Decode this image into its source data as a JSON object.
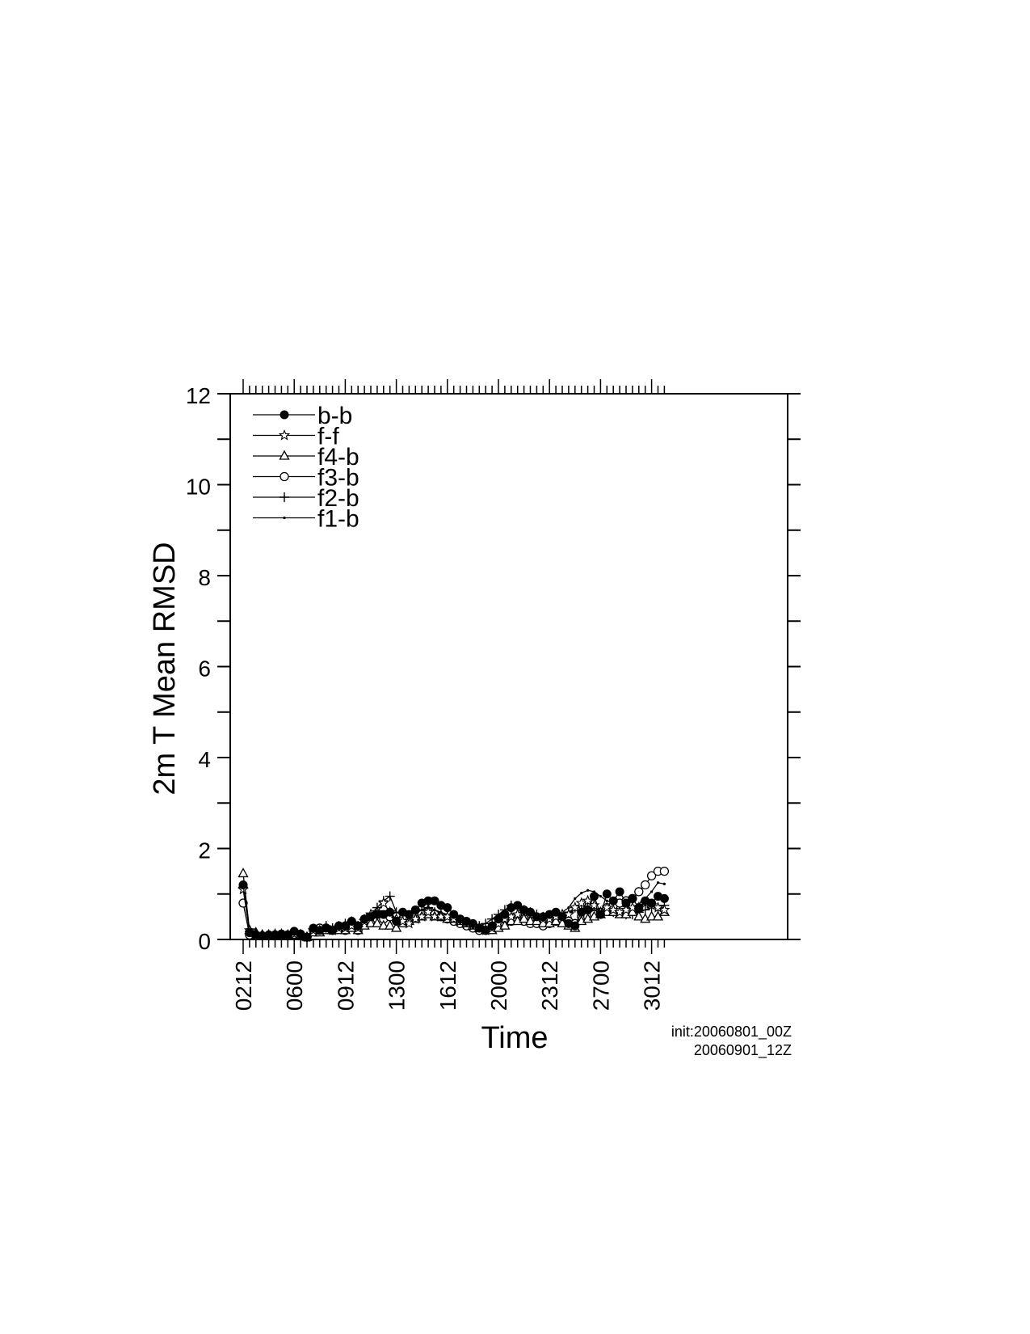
{
  "chart_data": {
    "type": "line",
    "title": "",
    "xlabel": "Time",
    "ylabel": "2m T Mean RMSD",
    "ylim": [
      0,
      12
    ],
    "yticks": [
      "0",
      "2",
      "4",
      "6",
      "8",
      "10",
      "12"
    ],
    "xtick_labels": [
      "0212",
      "0600",
      "0912",
      "1300",
      "1612",
      "2000",
      "2312",
      "2700",
      "3012"
    ],
    "xtick_index": [
      0,
      8,
      16,
      24,
      32,
      40,
      48,
      56,
      64
    ],
    "n_points": 67,
    "legend_position": "top-left",
    "grid": false,
    "annotations": [
      "init:20060801_00Z",
      "20060901_12Z"
    ],
    "series": [
      {
        "name": "b-b",
        "marker": "filled-circle",
        "values": [
          1.2,
          0.15,
          0.1,
          0.08,
          0.1,
          0.1,
          0.12,
          0.1,
          0.18,
          0.12,
          0.05,
          0.25,
          0.2,
          0.25,
          0.2,
          0.3,
          0.3,
          0.4,
          0.3,
          0.45,
          0.5,
          0.55,
          0.55,
          0.6,
          0.4,
          0.6,
          0.55,
          0.65,
          0.8,
          0.85,
          0.85,
          0.75,
          0.7,
          0.55,
          0.45,
          0.4,
          0.35,
          0.25,
          0.2,
          0.3,
          0.45,
          0.55,
          0.7,
          0.75,
          0.65,
          0.6,
          0.5,
          0.5,
          0.55,
          0.6,
          0.5,
          0.35,
          0.3,
          0.6,
          0.65,
          0.95,
          0.55,
          1.0,
          0.85,
          1.05,
          0.8,
          0.9,
          0.7,
          0.85,
          0.8,
          0.95,
          0.9
        ]
      },
      {
        "name": "f-f",
        "marker": "star",
        "values": [
          1.1,
          0.2,
          0.12,
          0.1,
          0.1,
          0.12,
          0.12,
          0.1,
          0.12,
          0.1,
          0.05,
          0.2,
          0.2,
          0.25,
          0.2,
          0.25,
          0.25,
          0.3,
          0.25,
          0.4,
          0.55,
          0.6,
          0.8,
          0.6,
          0.45,
          0.4,
          0.35,
          0.45,
          0.5,
          0.6,
          0.5,
          0.5,
          0.5,
          0.45,
          0.4,
          0.35,
          0.3,
          0.25,
          0.2,
          0.25,
          0.35,
          0.45,
          0.5,
          0.55,
          0.6,
          0.55,
          0.5,
          0.45,
          0.45,
          0.5,
          0.55,
          0.55,
          0.7,
          0.8,
          0.85,
          0.75,
          0.6,
          0.7,
          0.65,
          0.6,
          0.65,
          0.7,
          0.7,
          0.8,
          0.75,
          0.7,
          0.65
        ]
      },
      {
        "name": "f4-b",
        "marker": "triangle",
        "values": [
          1.45,
          0.2,
          0.15,
          0.1,
          0.1,
          0.1,
          0.1,
          0.1,
          0.1,
          0.1,
          0.05,
          0.15,
          0.15,
          0.2,
          0.2,
          0.2,
          0.2,
          0.25,
          0.2,
          0.3,
          0.35,
          0.35,
          0.3,
          0.3,
          0.25,
          0.35,
          0.4,
          0.45,
          0.5,
          0.55,
          0.5,
          0.5,
          0.45,
          0.45,
          0.4,
          0.35,
          0.3,
          0.25,
          0.2,
          0.2,
          0.25,
          0.3,
          0.4,
          0.4,
          0.45,
          0.4,
          0.4,
          0.35,
          0.35,
          0.4,
          0.35,
          0.3,
          0.25,
          0.4,
          0.45,
          0.5,
          0.55,
          0.6,
          0.6,
          0.55,
          0.55,
          0.6,
          0.5,
          0.45,
          0.5,
          0.5,
          0.6
        ]
      },
      {
        "name": "f3-b",
        "marker": "open-circle",
        "values": [
          0.8,
          0.1,
          0.08,
          0.08,
          0.08,
          0.1,
          0.1,
          0.1,
          0.1,
          0.1,
          0.05,
          0.2,
          0.25,
          0.25,
          0.2,
          0.25,
          0.2,
          0.3,
          0.2,
          0.35,
          0.4,
          0.45,
          0.45,
          0.5,
          0.5,
          0.45,
          0.4,
          0.5,
          0.55,
          0.6,
          0.55,
          0.5,
          0.45,
          0.4,
          0.35,
          0.3,
          0.25,
          0.2,
          0.2,
          0.25,
          0.3,
          0.35,
          0.4,
          0.45,
          0.4,
          0.35,
          0.35,
          0.3,
          0.35,
          0.4,
          0.45,
          0.4,
          0.35,
          0.5,
          0.5,
          0.55,
          0.6,
          0.7,
          0.75,
          0.8,
          0.85,
          0.9,
          1.05,
          1.2,
          1.4,
          1.5,
          1.5
        ]
      },
      {
        "name": "f2-b",
        "marker": "plus",
        "values": [
          1.15,
          0.18,
          0.12,
          0.1,
          0.1,
          0.1,
          0.12,
          0.1,
          0.15,
          0.12,
          0.06,
          0.22,
          0.2,
          0.3,
          0.25,
          0.3,
          0.35,
          0.4,
          0.3,
          0.45,
          0.55,
          0.7,
          0.85,
          0.95,
          0.6,
          0.55,
          0.5,
          0.6,
          0.65,
          0.7,
          0.6,
          0.55,
          0.5,
          0.45,
          0.4,
          0.35,
          0.3,
          0.3,
          0.35,
          0.45,
          0.55,
          0.65,
          0.75,
          0.7,
          0.65,
          0.6,
          0.55,
          0.5,
          0.45,
          0.5,
          0.55,
          0.6,
          0.7,
          0.75,
          0.7,
          0.65,
          0.6,
          0.65,
          0.6,
          0.6,
          0.55,
          0.55,
          0.6,
          0.65,
          0.7,
          0.7,
          0.75
        ]
      },
      {
        "name": "f1-b",
        "marker": "dot",
        "values": [
          1.25,
          0.16,
          0.1,
          0.09,
          0.1,
          0.1,
          0.11,
          0.1,
          0.15,
          0.11,
          0.05,
          0.22,
          0.22,
          0.27,
          0.22,
          0.28,
          0.3,
          0.35,
          0.28,
          0.42,
          0.5,
          0.55,
          0.6,
          0.62,
          0.48,
          0.55,
          0.5,
          0.58,
          0.65,
          0.72,
          0.65,
          0.6,
          0.55,
          0.5,
          0.42,
          0.38,
          0.33,
          0.26,
          0.22,
          0.28,
          0.38,
          0.45,
          0.55,
          0.6,
          0.58,
          0.55,
          0.5,
          0.45,
          0.48,
          0.55,
          0.6,
          0.7,
          0.9,
          1.02,
          1.08,
          1.05,
          0.95,
          0.85,
          0.8,
          0.75,
          0.7,
          0.72,
          0.78,
          0.9,
          1.05,
          1.25,
          1.22
        ]
      }
    ]
  }
}
